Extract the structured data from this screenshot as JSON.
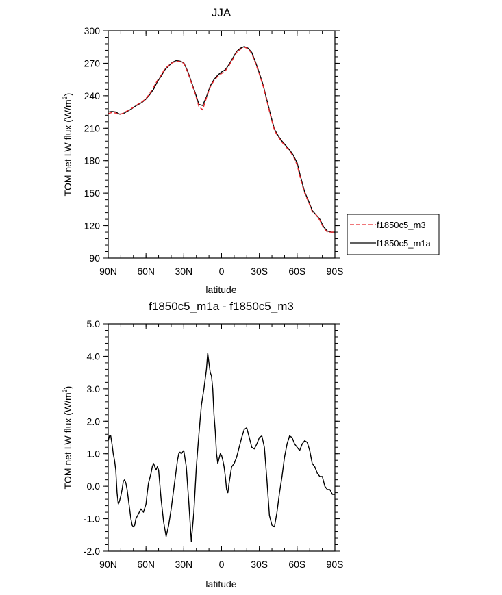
{
  "chart_data": [
    {
      "type": "line",
      "title": "JJA",
      "xlabel": "latitude",
      "ylabel": "TOM net LW flux (W/m²)",
      "ylabel_main": "TOM net LW flux (W/m",
      "ylabel_sup": "2",
      "ylabel_end": ")",
      "xlim": [
        90,
        -90
      ],
      "ylim": [
        90,
        300
      ],
      "xticks": [
        90,
        60,
        30,
        0,
        -30,
        -60,
        -90
      ],
      "xtick_labels": [
        "90N",
        "60N",
        "30N",
        "0",
        "30S",
        "60S",
        "90S"
      ],
      "yticks": [
        90,
        120,
        150,
        180,
        210,
        240,
        270,
        300
      ],
      "ytick_labels": [
        "90",
        "120",
        "150",
        "180",
        "210",
        "240",
        "270",
        "300"
      ],
      "legend_position": "outside-right",
      "x": [
        90,
        87,
        84,
        81,
        78,
        75,
        72,
        69,
        66,
        63,
        60,
        57,
        54,
        51,
        48,
        45,
        42,
        39,
        36,
        33,
        30,
        27,
        24,
        21,
        18,
        15,
        12,
        9,
        6,
        3,
        0,
        -3,
        -6,
        -9,
        -12,
        -15,
        -18,
        -21,
        -24,
        -27,
        -30,
        -33,
        -36,
        -39,
        -42,
        -45,
        -48,
        -51,
        -54,
        -57,
        -60,
        -63,
        -66,
        -69,
        -72,
        -75,
        -78,
        -81,
        -84,
        -87,
        -90
      ],
      "series": [
        {
          "name": "f1850c5_m3",
          "color": "#e8262b",
          "dash": "dashed",
          "values": [
            223.5,
            224.5,
            224,
            222.5,
            224,
            226,
            228,
            230,
            232.5,
            234.5,
            237.5,
            242,
            248,
            254,
            259,
            265,
            268,
            270.5,
            272,
            271.5,
            270,
            262,
            252,
            242,
            230,
            227,
            238,
            248,
            254,
            258,
            260.5,
            263,
            268,
            274,
            280,
            283,
            285,
            283.5,
            279,
            270,
            260,
            249,
            235,
            221,
            208,
            202,
            197,
            193,
            189,
            184,
            176,
            162,
            150,
            142,
            133,
            130,
            125,
            118,
            114,
            114,
            114
          ]
        },
        {
          "name": "f1850c5_m1a",
          "color": "#000000",
          "dash": "solid",
          "values": [
            225,
            225.5,
            225,
            223,
            223.5,
            225.5,
            227.5,
            230,
            232,
            234,
            237,
            241,
            246,
            253,
            258,
            264,
            267.5,
            271,
            272.5,
            272,
            270.5,
            263,
            253,
            243,
            232,
            231,
            239,
            249,
            255,
            259,
            262,
            264,
            269,
            275,
            281,
            284,
            285.5,
            284,
            280,
            271,
            261,
            250,
            236,
            222,
            209,
            203,
            198,
            194,
            190,
            185,
            178,
            164,
            151,
            143,
            134,
            130,
            126,
            119,
            115,
            114,
            114
          ]
        }
      ]
    },
    {
      "type": "line",
      "title": "f1850c5_m1a - f1850c5_m3",
      "xlabel": "latitude",
      "ylabel": "TOM net LW flux (W/m²)",
      "ylabel_main": "TOM net LW flux (W/m",
      "ylabel_sup": "2",
      "ylabel_end": ")",
      "xlim": [
        90,
        -90
      ],
      "ylim": [
        -2,
        5
      ],
      "xticks": [
        90,
        60,
        30,
        0,
        -30,
        -60,
        -90
      ],
      "xtick_labels": [
        "90N",
        "60N",
        "30N",
        "0",
        "30S",
        "60S",
        "90S"
      ],
      "yticks": [
        -2,
        -1,
        0,
        1,
        2,
        3,
        4,
        5
      ],
      "ytick_labels": [
        "-2.0",
        "-1.0",
        "0.0",
        "1.0",
        "2.0",
        "3.0",
        "4.0",
        "5.0"
      ],
      "series": [
        {
          "name": "f1850c5_m1a - f1850c5_m3",
          "color": "#000000",
          "dash": "solid",
          "x": [
            90,
            89,
            88,
            87,
            86,
            85,
            84,
            83,
            82,
            81,
            80,
            79,
            78,
            77,
            76,
            75,
            74,
            73,
            72,
            71,
            70,
            69,
            68,
            66,
            64,
            62,
            60,
            59,
            58,
            56,
            55,
            54,
            53,
            52,
            51,
            50,
            48,
            46,
            44,
            42,
            40,
            38,
            36,
            35,
            34,
            33,
            32,
            30,
            28,
            26,
            24,
            22,
            20,
            18,
            16,
            14,
            12,
            11,
            10,
            9,
            8,
            7,
            6,
            5,
            4,
            3,
            2,
            1,
            0,
            -1,
            -2,
            -3,
            -4,
            -5,
            -6,
            -8,
            -10,
            -12,
            -14,
            -16,
            -18,
            -20,
            -22,
            -24,
            -26,
            -28,
            -30,
            -32,
            -34,
            -36,
            -38,
            -40,
            -42,
            -44,
            -46,
            -48,
            -50,
            -52,
            -54,
            -56,
            -58,
            -60,
            -62,
            -64,
            -66,
            -68,
            -70,
            -72,
            -74,
            -76,
            -78,
            -80,
            -82,
            -84,
            -86,
            -88,
            -90
          ],
          "values": [
            1.4,
            1.55,
            1.55,
            1.3,
            1.0,
            0.8,
            0.5,
            -0.2,
            -0.55,
            -0.45,
            -0.3,
            -0.1,
            0.15,
            0.2,
            0.1,
            -0.1,
            -0.4,
            -0.7,
            -1.0,
            -1.2,
            -1.25,
            -1.2,
            -1.0,
            -0.85,
            -0.7,
            -0.8,
            -0.55,
            -0.2,
            0.1,
            0.4,
            0.6,
            0.7,
            0.6,
            0.5,
            0.6,
            0.5,
            -0.4,
            -1.1,
            -1.55,
            -1.2,
            -0.7,
            -0.1,
            0.5,
            0.8,
            1.0,
            1.05,
            1.0,
            1.1,
            0.6,
            -0.5,
            -1.7,
            -0.8,
            0.6,
            1.6,
            2.5,
            3.0,
            3.6,
            4.1,
            3.8,
            3.5,
            3.4,
            3.0,
            2.2,
            1.7,
            1.0,
            0.7,
            0.85,
            1.0,
            0.95,
            0.8,
            0.6,
            0.3,
            -0.1,
            -0.2,
            0.1,
            0.6,
            0.7,
            0.9,
            1.2,
            1.5,
            1.75,
            1.8,
            1.5,
            1.2,
            1.15,
            1.3,
            1.5,
            1.55,
            1.2,
            0.2,
            -0.9,
            -1.2,
            -1.25,
            -0.8,
            -0.2,
            0.3,
            0.9,
            1.3,
            1.55,
            1.5,
            1.3,
            1.2,
            1.1,
            1.3,
            1.4,
            1.35,
            1.1,
            0.7,
            0.6,
            0.4,
            0.3,
            0.3,
            0.0,
            -0.1,
            -0.1,
            -0.25,
            -0.25
          ]
        }
      ]
    }
  ]
}
